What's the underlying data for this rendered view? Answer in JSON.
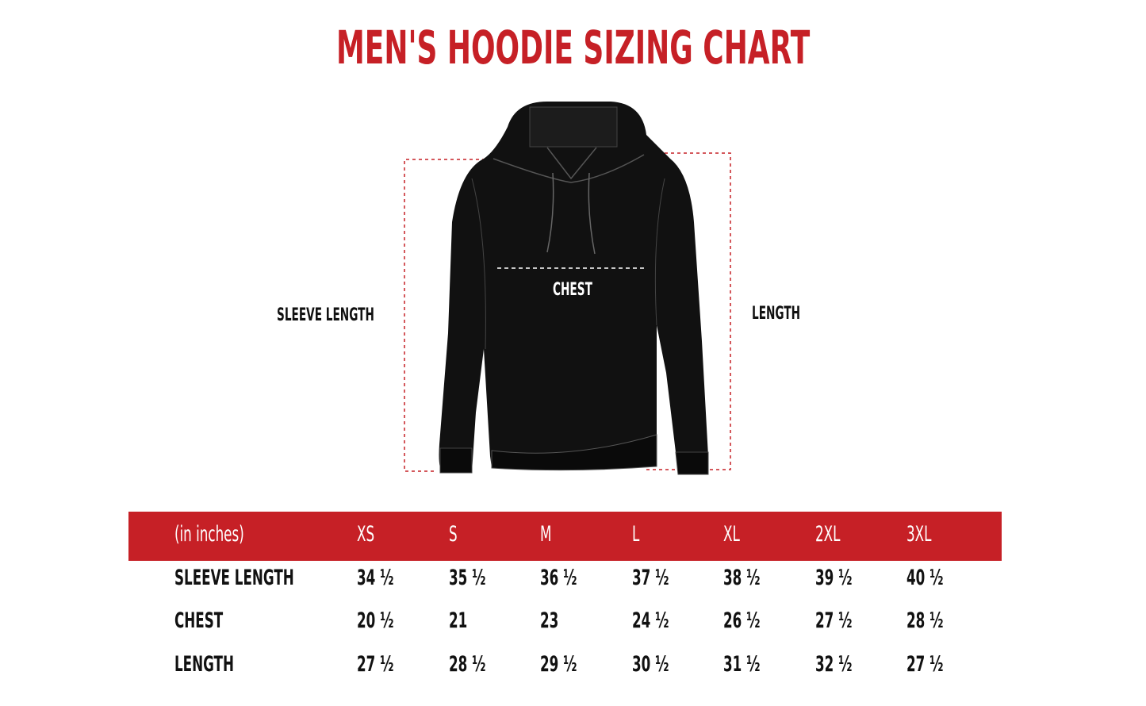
{
  "title": "MEN'S HOODIE SIZING CHART",
  "colors": {
    "accent": "#c62026",
    "garment": "#111111"
  },
  "diagram": {
    "labels": {
      "sleeve_length": "SLEEVE LENGTH",
      "chest": "CHEST",
      "length": "LENGTH"
    }
  },
  "table": {
    "unit_header": "(in inches)",
    "sizes": [
      "XS",
      "S",
      "M",
      "L",
      "XL",
      "2XL",
      "3XL"
    ],
    "rows": [
      {
        "label": "SLEEVE LENGTH",
        "values": [
          "34 ½",
          "35 ½",
          "36 ½",
          "37 ½",
          "38 ½",
          "39 ½",
          "40 ½"
        ]
      },
      {
        "label": "CHEST",
        "values": [
          "20 ½",
          "21",
          "23",
          "24 ½",
          "26 ½",
          "27 ½",
          "28 ½"
        ]
      },
      {
        "label": "LENGTH",
        "values": [
          "27 ½",
          "28 ½",
          "29 ½",
          "30 ½",
          "31 ½",
          "32 ½",
          "27 ½"
        ]
      }
    ]
  }
}
